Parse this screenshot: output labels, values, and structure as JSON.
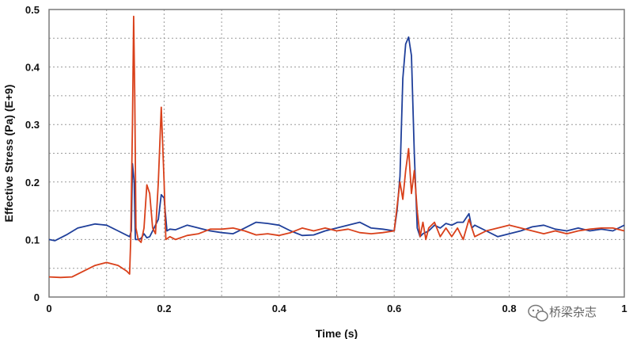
{
  "chart_data": {
    "type": "line",
    "xlabel": "Time (s)",
    "ylabel": "Effective Stress (Pa) (E+9)",
    "xlim": [
      0,
      1
    ],
    "ylim": [
      0,
      0.5
    ],
    "x_ticks": [
      "0",
      "0.2",
      "0.4",
      "0.6",
      "0.8",
      "1"
    ],
    "x_tick_values": [
      0,
      0.2,
      0.4,
      0.6,
      0.8,
      1
    ],
    "y_ticks": [
      "0",
      "0.1",
      "0.2",
      "0.3",
      "0.4",
      "0.5"
    ],
    "y_tick_values": [
      0,
      0.1,
      0.2,
      0.3,
      0.4,
      0.5
    ],
    "grid": true,
    "series": [
      {
        "color": "#1f3f9a",
        "points": [
          [
            0,
            0.1
          ],
          [
            0.01,
            0.098
          ],
          [
            0.03,
            0.108
          ],
          [
            0.05,
            0.12
          ],
          [
            0.08,
            0.127
          ],
          [
            0.1,
            0.125
          ],
          [
            0.12,
            0.115
          ],
          [
            0.14,
            0.105
          ],
          [
            0.143,
            0.115
          ],
          [
            0.145,
            0.232
          ],
          [
            0.148,
            0.2
          ],
          [
            0.15,
            0.1
          ],
          [
            0.155,
            0.1
          ],
          [
            0.16,
            0.102
          ],
          [
            0.165,
            0.11
          ],
          [
            0.17,
            0.103
          ],
          [
            0.175,
            0.105
          ],
          [
            0.18,
            0.115
          ],
          [
            0.19,
            0.135
          ],
          [
            0.195,
            0.178
          ],
          [
            0.2,
            0.172
          ],
          [
            0.205,
            0.115
          ],
          [
            0.21,
            0.118
          ],
          [
            0.22,
            0.117
          ],
          [
            0.24,
            0.125
          ],
          [
            0.26,
            0.12
          ],
          [
            0.28,
            0.115
          ],
          [
            0.3,
            0.112
          ],
          [
            0.32,
            0.11
          ],
          [
            0.34,
            0.12
          ],
          [
            0.36,
            0.13
          ],
          [
            0.38,
            0.128
          ],
          [
            0.4,
            0.125
          ],
          [
            0.42,
            0.115
          ],
          [
            0.44,
            0.107
          ],
          [
            0.46,
            0.108
          ],
          [
            0.48,
            0.115
          ],
          [
            0.5,
            0.12
          ],
          [
            0.52,
            0.125
          ],
          [
            0.54,
            0.13
          ],
          [
            0.56,
            0.12
          ],
          [
            0.58,
            0.118
          ],
          [
            0.6,
            0.115
          ],
          [
            0.605,
            0.15
          ],
          [
            0.61,
            0.21
          ],
          [
            0.615,
            0.38
          ],
          [
            0.62,
            0.44
          ],
          [
            0.625,
            0.452
          ],
          [
            0.63,
            0.42
          ],
          [
            0.635,
            0.25
          ],
          [
            0.64,
            0.12
          ],
          [
            0.645,
            0.105
          ],
          [
            0.65,
            0.11
          ],
          [
            0.66,
            0.115
          ],
          [
            0.67,
            0.125
          ],
          [
            0.68,
            0.12
          ],
          [
            0.69,
            0.128
          ],
          [
            0.7,
            0.125
          ],
          [
            0.71,
            0.13
          ],
          [
            0.72,
            0.13
          ],
          [
            0.73,
            0.145
          ],
          [
            0.735,
            0.12
          ],
          [
            0.74,
            0.125
          ],
          [
            0.75,
            0.12
          ],
          [
            0.76,
            0.115
          ],
          [
            0.78,
            0.105
          ],
          [
            0.8,
            0.11
          ],
          [
            0.82,
            0.115
          ],
          [
            0.84,
            0.122
          ],
          [
            0.86,
            0.125
          ],
          [
            0.88,
            0.118
          ],
          [
            0.9,
            0.115
          ],
          [
            0.92,
            0.12
          ],
          [
            0.94,
            0.115
          ],
          [
            0.96,
            0.118
          ],
          [
            0.98,
            0.115
          ],
          [
            1,
            0.125
          ]
        ]
      },
      {
        "color": "#d9401a",
        "points": [
          [
            0,
            0.035
          ],
          [
            0.02,
            0.034
          ],
          [
            0.04,
            0.035
          ],
          [
            0.06,
            0.045
          ],
          [
            0.08,
            0.055
          ],
          [
            0.1,
            0.06
          ],
          [
            0.12,
            0.055
          ],
          [
            0.135,
            0.045
          ],
          [
            0.14,
            0.04
          ],
          [
            0.142,
            0.1
          ],
          [
            0.145,
            0.3
          ],
          [
            0.147,
            0.488
          ],
          [
            0.149,
            0.35
          ],
          [
            0.151,
            0.12
          ],
          [
            0.155,
            0.1
          ],
          [
            0.16,
            0.095
          ],
          [
            0.165,
            0.12
          ],
          [
            0.17,
            0.195
          ],
          [
            0.175,
            0.18
          ],
          [
            0.18,
            0.12
          ],
          [
            0.185,
            0.11
          ],
          [
            0.19,
            0.2
          ],
          [
            0.195,
            0.33
          ],
          [
            0.2,
            0.2
          ],
          [
            0.203,
            0.1
          ],
          [
            0.21,
            0.105
          ],
          [
            0.22,
            0.1
          ],
          [
            0.24,
            0.107
          ],
          [
            0.26,
            0.11
          ],
          [
            0.28,
            0.118
          ],
          [
            0.3,
            0.118
          ],
          [
            0.32,
            0.12
          ],
          [
            0.34,
            0.115
          ],
          [
            0.36,
            0.108
          ],
          [
            0.38,
            0.11
          ],
          [
            0.4,
            0.107
          ],
          [
            0.42,
            0.112
          ],
          [
            0.44,
            0.12
          ],
          [
            0.46,
            0.115
          ],
          [
            0.48,
            0.12
          ],
          [
            0.5,
            0.115
          ],
          [
            0.52,
            0.118
          ],
          [
            0.54,
            0.112
          ],
          [
            0.56,
            0.11
          ],
          [
            0.58,
            0.112
          ],
          [
            0.6,
            0.115
          ],
          [
            0.61,
            0.2
          ],
          [
            0.615,
            0.17
          ],
          [
            0.62,
            0.22
          ],
          [
            0.625,
            0.258
          ],
          [
            0.63,
            0.18
          ],
          [
            0.635,
            0.22
          ],
          [
            0.64,
            0.15
          ],
          [
            0.645,
            0.105
          ],
          [
            0.65,
            0.13
          ],
          [
            0.655,
            0.1
          ],
          [
            0.66,
            0.12
          ],
          [
            0.67,
            0.13
          ],
          [
            0.68,
            0.105
          ],
          [
            0.69,
            0.12
          ],
          [
            0.7,
            0.105
          ],
          [
            0.71,
            0.12
          ],
          [
            0.72,
            0.1
          ],
          [
            0.73,
            0.135
          ],
          [
            0.74,
            0.105
          ],
          [
            0.75,
            0.11
          ],
          [
            0.76,
            0.115
          ],
          [
            0.78,
            0.12
          ],
          [
            0.8,
            0.125
          ],
          [
            0.82,
            0.12
          ],
          [
            0.84,
            0.115
          ],
          [
            0.86,
            0.11
          ],
          [
            0.88,
            0.115
          ],
          [
            0.9,
            0.11
          ],
          [
            0.92,
            0.115
          ],
          [
            0.94,
            0.118
          ],
          [
            0.96,
            0.12
          ],
          [
            0.98,
            0.12
          ],
          [
            1,
            0.115
          ]
        ]
      }
    ]
  },
  "watermark": {
    "icon": "wechat-icon",
    "text": "桥梁杂志"
  }
}
